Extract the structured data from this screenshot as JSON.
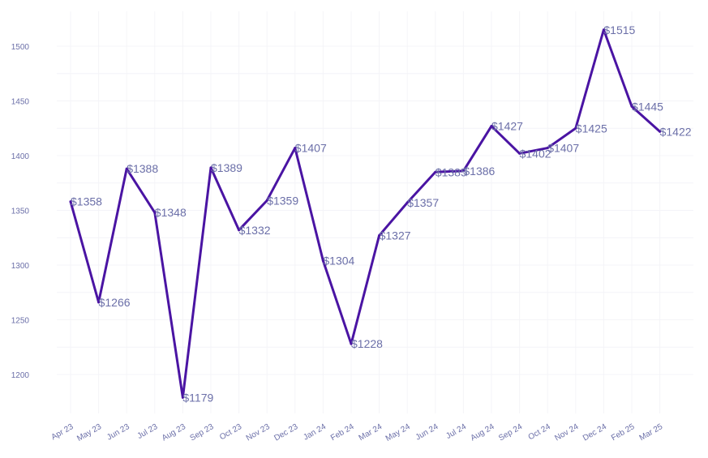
{
  "chart_data": {
    "type": "line",
    "title": "",
    "xlabel": "",
    "ylabel": "",
    "categories": [
      "Apr 23",
      "May 23",
      "Jun 23",
      "Jul 23",
      "Aug 23",
      "Sep 23",
      "Oct 23",
      "Nov 23",
      "Dec 23",
      "Jan 24",
      "Feb 24",
      "Mar 24",
      "May 24",
      "Jun 24",
      "Jul 24",
      "Aug 24",
      "Sep 24",
      "Oct 24",
      "Nov 24",
      "Dec 24",
      "Feb 25",
      "Mar 25"
    ],
    "values": [
      1358,
      1266,
      1388,
      1348,
      1179,
      1389,
      1332,
      1359,
      1407,
      1304,
      1228,
      1327,
      1357,
      1385,
      1386,
      1427,
      1402,
      1407,
      1425,
      1515,
      1445,
      1422
    ],
    "data_labels": [
      "$1358",
      "$1266",
      "$1388",
      "$1348",
      "$1179",
      "$1389",
      "$1332",
      "$1359",
      "$1407",
      "$1304",
      "$1228",
      "$1327",
      "$1357",
      "$1385",
      "$1386",
      "$1427",
      "$1402",
      "$1407",
      "$1425",
      "$1515",
      "$1445",
      "$1422"
    ],
    "yticks": [
      1200,
      1250,
      1300,
      1350,
      1400,
      1450,
      1500
    ],
    "ylim": [
      1160,
      1520
    ],
    "grid": true,
    "legend": "none",
    "line_color": "#4a14a3"
  }
}
